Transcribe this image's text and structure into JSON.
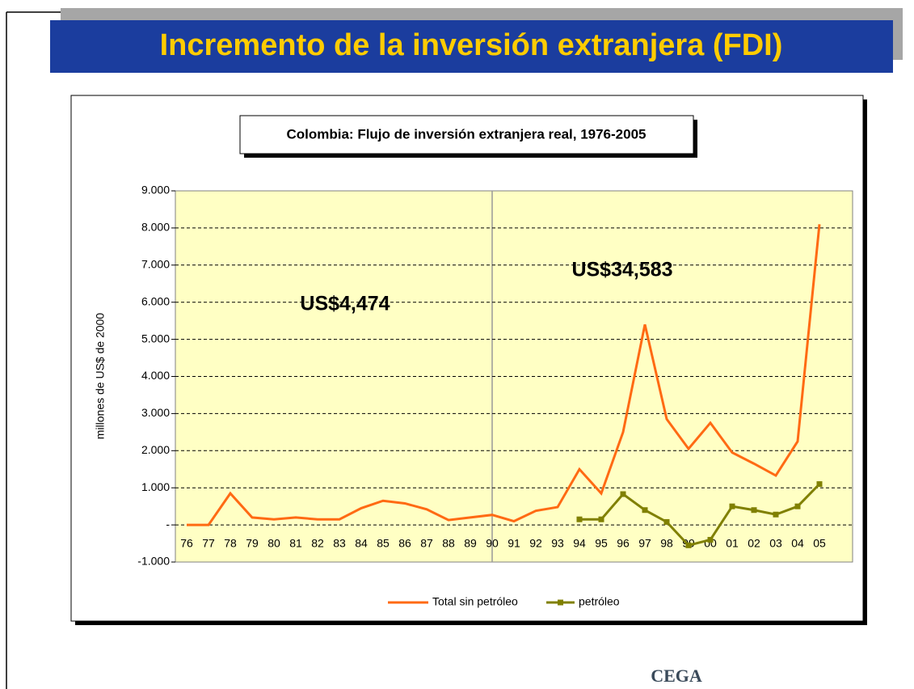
{
  "slide_title": "Incremento de la inversión extranjera (FDI)",
  "footer": "CEGA",
  "chart_data": {
    "type": "line",
    "title": "Colombia: Flujo de inversión extranjera real, 1976-2005",
    "y_label": "millones de US$ de 2000",
    "categories": [
      "76",
      "77",
      "78",
      "79",
      "80",
      "81",
      "82",
      "83",
      "84",
      "85",
      "86",
      "87",
      "88",
      "89",
      "90",
      "91",
      "92",
      "93",
      "94",
      "95",
      "96",
      "97",
      "98",
      "99",
      "00",
      "01",
      "02",
      "03",
      "04",
      "05"
    ],
    "series": [
      {
        "name": "Total sin petróleo",
        "color": "#ff6a13",
        "values": [
          0,
          0,
          850,
          200,
          150,
          200,
          150,
          150,
          450,
          650,
          580,
          420,
          130,
          200,
          270,
          100,
          380,
          480,
          1500,
          850,
          2500,
          5400,
          2850,
          2050,
          2750,
          1950,
          1650,
          1330,
          2250,
          8100
        ]
      },
      {
        "name": "petróleo",
        "color": "#808000",
        "marker": "square",
        "values": [
          null,
          null,
          null,
          null,
          null,
          null,
          null,
          null,
          null,
          null,
          null,
          null,
          null,
          null,
          null,
          null,
          null,
          null,
          150,
          150,
          830,
          400,
          80,
          -550,
          -400,
          500,
          400,
          280,
          500,
          1100
        ]
      }
    ],
    "ylim": [
      -1000,
      9000
    ],
    "yticks": [
      {
        "value": -1000,
        "label": "-1.000"
      },
      {
        "value": 0,
        "label": "-"
      },
      {
        "value": 1000,
        "label": "1.000"
      },
      {
        "value": 2000,
        "label": "2.000"
      },
      {
        "value": 3000,
        "label": "3.000"
      },
      {
        "value": 4000,
        "label": "4.000"
      },
      {
        "value": 5000,
        "label": "5.000"
      },
      {
        "value": 6000,
        "label": "6.000"
      },
      {
        "value": 7000,
        "label": "7.000"
      },
      {
        "value": 8000,
        "label": "8.000"
      },
      {
        "value": 9000,
        "label": "9.000"
      }
    ],
    "grid": true,
    "legend": "bottom",
    "annotations": [
      "US$4,474",
      "US$34,583"
    ]
  }
}
